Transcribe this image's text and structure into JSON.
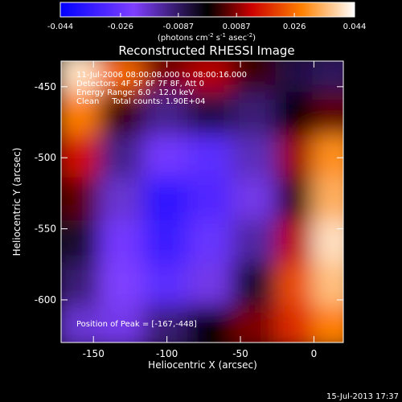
{
  "colorbar": {
    "tick_labels": [
      "-0.044",
      "-0.026",
      "-0.0087",
      "0.0087",
      "0.026",
      "0.044"
    ],
    "unit_label_main": "(photons cm",
    "unit_label_sup1": "-2",
    "unit_label_mid": " s",
    "unit_label_sup2": "-1",
    "unit_label_end": " asec",
    "unit_label_sup3": "-2",
    "unit_label_close": ")"
  },
  "annotations": {
    "time_range": "11-Jul-2006 08:00:08.000 to 08:00:16.000",
    "detectors": "Detectors: 4F 5F 6F 7F 8F, Att 0",
    "energy": "Energy Range: 6.0 - 12.0 keV",
    "clean_counts": "Clean     Total counts: 1.90E+04",
    "peak": "Position of Peak = [-167,-448]"
  },
  "footer": {
    "timestamp": "15-Jul-2013 17:37"
  },
  "colors": {
    "background": "#000000",
    "colormap": [
      "#0000ff",
      "#7f3fff",
      "#000000",
      "#cc0000",
      "#ff8000",
      "#ffffff"
    ]
  },
  "chart_data": {
    "type": "heatmap",
    "title": "Reconstructed RHESSI Image",
    "xlabel": "Heliocentric X (arcsec)",
    "ylabel": "Heliocentric Y (arcsec)",
    "xlim": [
      -172,
      20
    ],
    "ylim": [
      -630,
      -432
    ],
    "x_ticks": [
      -150,
      -100,
      -50,
      0
    ],
    "x_tick_labels": [
      "-150",
      "-100",
      "-50",
      "0"
    ],
    "y_ticks": [
      -450,
      -500,
      -550,
      -600
    ],
    "y_tick_labels": [
      "-450",
      "-500",
      "-550",
      "-600"
    ],
    "colorbar_range": [
      -0.044,
      0.044
    ],
    "grid": false,
    "x_centers": [
      -160,
      -130,
      -100,
      -70,
      -40,
      -10,
      15
    ],
    "y_centers": [
      -440,
      -470,
      -500,
      -530,
      -560,
      -590,
      -620
    ],
    "values": [
      [
        0.04,
        0.025,
        0.008,
        0.012,
        0.004,
        -0.006,
        -0.008
      ],
      [
        0.028,
        0.004,
        -0.012,
        -0.006,
        -0.01,
        0.0,
        0.006
      ],
      [
        0.014,
        -0.012,
        -0.024,
        -0.028,
        -0.016,
        0.01,
        0.03
      ],
      [
        0.006,
        -0.018,
        -0.036,
        -0.03,
        -0.02,
        0.004,
        0.034
      ],
      [
        -0.004,
        -0.024,
        -0.034,
        -0.026,
        -0.014,
        0.012,
        0.04
      ],
      [
        -0.01,
        -0.022,
        -0.028,
        -0.02,
        -0.004,
        0.022,
        0.036
      ],
      [
        -0.018,
        -0.02,
        -0.01,
        0.0,
        0.008,
        0.018,
        0.028
      ]
    ],
    "peak_position": [
      -167,
      -448
    ]
  }
}
